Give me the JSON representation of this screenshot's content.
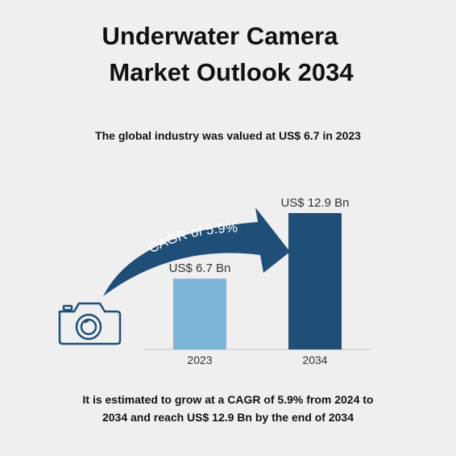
{
  "header": {
    "title_line1": "Underwater Camera",
    "title_line2": "Market Outlook 2034",
    "subtitle": "The global industry was valued at US$ 6.7 in 2023"
  },
  "footer": {
    "line1": "It is estimated to grow at a CAGR of 5.9% from 2024 to",
    "line2": "2034 and reach US$ 12.9 Bn by the end of 2034"
  },
  "arrow": {
    "label": "CAGR of 5.9%"
  },
  "icons": {
    "left": "camera-icon"
  },
  "colors": {
    "bar_2023": "#7db5d9",
    "bar_2034": "#1f4e79",
    "arrow": "#1f4e79"
  },
  "chart_data": {
    "type": "bar",
    "categories": [
      "2023",
      "2034"
    ],
    "values": [
      6.7,
      12.9
    ],
    "data_labels": [
      "US$ 6.7 Bn",
      "US$ 12.9 Bn"
    ],
    "title": "",
    "xlabel": "",
    "ylabel": "",
    "ylim": [
      0,
      12.9
    ],
    "grid": false,
    "legend": "none"
  }
}
